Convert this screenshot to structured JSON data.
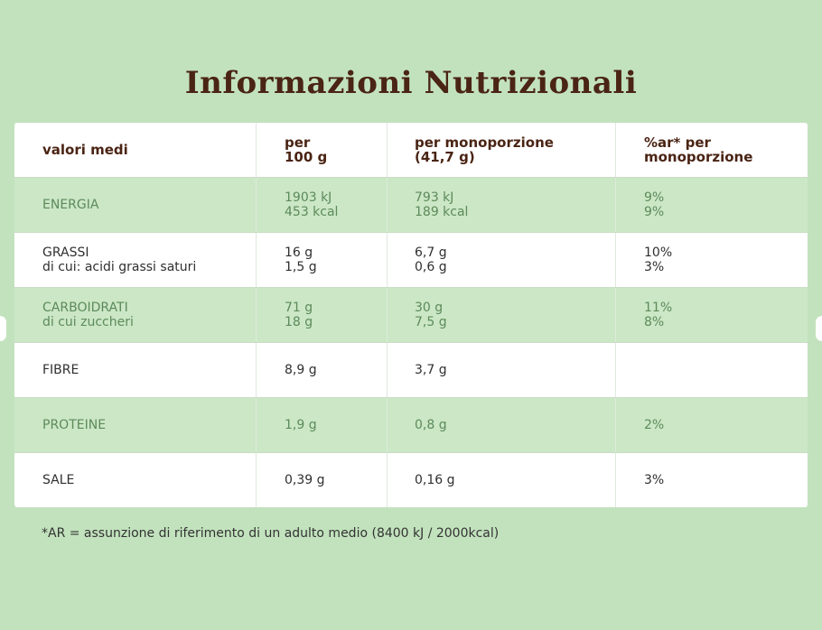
{
  "title": "Informazioni Nutrizionali",
  "header": {
    "col0": "valori medi",
    "col1_l1": "per",
    "col1_l2": "100 g",
    "col2_l1": "per monoporzione",
    "col2_l2": "(41,7 g)",
    "col3_l1": "%ar* per",
    "col3_l2": "monoporzione"
  },
  "rows": [
    {
      "label": "ENERGIA",
      "sublabel": "",
      "per100": [
        "1903 kJ",
        "453 kcal"
      ],
      "portion": [
        "793 kJ",
        "189 kcal"
      ],
      "ar": [
        "9%",
        "9%"
      ]
    },
    {
      "label": "GRASSI",
      "sublabel": "di cui: acidi grassi saturi",
      "per100": [
        "16 g",
        "1,5 g"
      ],
      "portion": [
        "6,7 g",
        "0,6 g"
      ],
      "ar": [
        "10%",
        "3%"
      ]
    },
    {
      "label": "CARBOIDRATI",
      "sublabel": "di cui zuccheri",
      "per100": [
        "71 g",
        "18 g"
      ],
      "portion": [
        "30 g",
        "7,5 g"
      ],
      "ar": [
        "11%",
        "8%"
      ]
    },
    {
      "label": "FIBRE",
      "sublabel": "",
      "per100": [
        "8,9 g",
        ""
      ],
      "portion": [
        "3,7 g",
        ""
      ],
      "ar": [
        "",
        ""
      ]
    },
    {
      "label": "PROTEINE",
      "sublabel": "",
      "per100": [
        "1,9 g",
        ""
      ],
      "portion": [
        "0,8 g",
        ""
      ],
      "ar": [
        "2%",
        ""
      ]
    },
    {
      "label": "SALE",
      "sublabel": "",
      "per100": [
        "0,39 g",
        ""
      ],
      "portion": [
        "0,16 g",
        ""
      ],
      "ar": [
        "3%",
        ""
      ]
    }
  ],
  "footnote": "*AR = assunzione di riferimento di un adulto medio (8400 kJ / 2000kcal)",
  "colors": {
    "background": "#c2e2bd",
    "title": "#4a2414",
    "alt_row": "#cbe7c6",
    "alt_text": "#5d8a5a"
  }
}
